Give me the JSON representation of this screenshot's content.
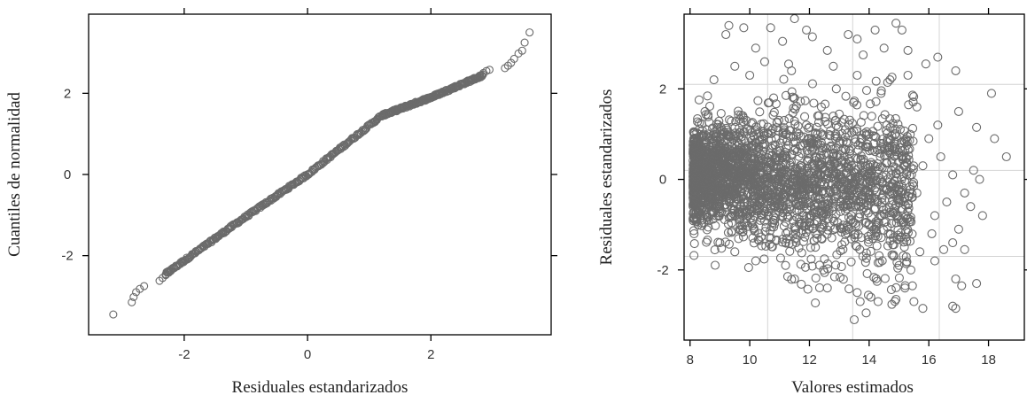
{
  "chart_data": [
    {
      "type": "scatter",
      "title": "",
      "xlabel": "Residuales estandarizados",
      "ylabel": "Cuantiles de normalidad",
      "xlim": [
        -3.55,
        3.95
      ],
      "ylim": [
        -3.95,
        3.95
      ],
      "x_ticks": [
        "-2",
        "0",
        "2"
      ],
      "y_ticks": [
        "-2",
        "0",
        "2"
      ],
      "x_tick_values": [
        -2,
        0,
        2
      ],
      "y_tick_values": [
        -2,
        0,
        2
      ],
      "grid": false,
      "marker_color": "#6b6b6b",
      "points": [
        [
          -3.15,
          -3.45
        ],
        [
          -2.85,
          -3.15
        ],
        [
          -2.82,
          -3.02
        ],
        [
          -2.78,
          -2.9
        ],
        [
          -2.72,
          -2.82
        ],
        [
          -2.65,
          -2.75
        ],
        [
          -2.4,
          -2.62
        ],
        [
          -2.35,
          -2.55
        ],
        [
          -2.3,
          -2.48
        ],
        [
          -2.25,
          -2.42
        ],
        [
          2.85,
          2.5
        ],
        [
          2.9,
          2.55
        ],
        [
          2.95,
          2.58
        ],
        [
          3.2,
          2.62
        ],
        [
          3.25,
          2.68
        ],
        [
          3.3,
          2.75
        ],
        [
          3.35,
          2.85
        ],
        [
          3.42,
          2.98
        ],
        [
          3.48,
          3.05
        ],
        [
          3.52,
          3.25
        ],
        [
          3.6,
          3.5
        ]
      ],
      "trend": [
        [
          -2.3,
          -2.45
        ],
        [
          -1.2,
          -1.25
        ],
        [
          0,
          0
        ],
        [
          1.2,
          1.45
        ],
        [
          2.0,
          1.9
        ],
        [
          2.85,
          2.45
        ]
      ]
    },
    {
      "type": "scatter",
      "title": "",
      "xlabel": "Valores estimados",
      "ylabel": "Residuales estandarizados",
      "xlim": [
        7.8,
        19.2
      ],
      "ylim": [
        -3.55,
        3.65
      ],
      "x_ticks": [
        "8",
        "10",
        "12",
        "14",
        "16",
        "18"
      ],
      "y_ticks": [
        "-2",
        "0",
        "2"
      ],
      "x_tick_values": [
        8,
        10,
        12,
        14,
        16,
        18
      ],
      "y_tick_values": [
        -2,
        0,
        2
      ],
      "grid": true,
      "grid_x": [
        10.6,
        13.45,
        16.35
      ],
      "grid_y": [
        -1.7,
        0.2,
        2.1
      ],
      "marker_color": "#6b6b6b",
      "points": [
        [
          9.3,
          3.4
        ],
        [
          9.2,
          3.2
        ],
        [
          9.8,
          3.35
        ],
        [
          10.7,
          3.35
        ],
        [
          11.5,
          3.55
        ],
        [
          11.9,
          3.3
        ],
        [
          12.1,
          3.15
        ],
        [
          13.3,
          3.2
        ],
        [
          14.2,
          3.3
        ],
        [
          14.9,
          3.45
        ],
        [
          15.1,
          3.3
        ],
        [
          13.6,
          3.1
        ],
        [
          14.5,
          2.9
        ],
        [
          15.3,
          2.85
        ],
        [
          11.1,
          3.05
        ],
        [
          16.3,
          2.7
        ],
        [
          16.9,
          2.4
        ],
        [
          15.9,
          2.55
        ],
        [
          13.8,
          2.75
        ],
        [
          12.6,
          2.85
        ],
        [
          10.2,
          2.9
        ],
        [
          9.5,
          2.5
        ],
        [
          8.8,
          2.2
        ],
        [
          10.5,
          2.6
        ],
        [
          17.0,
          1.5
        ],
        [
          17.6,
          1.15
        ],
        [
          18.1,
          1.9
        ],
        [
          18.2,
          0.9
        ],
        [
          18.6,
          0.5
        ],
        [
          17.5,
          0.2
        ],
        [
          17.7,
          0.0
        ],
        [
          17.2,
          -0.3
        ],
        [
          17.4,
          -0.6
        ],
        [
          17.0,
          -1.1
        ],
        [
          16.8,
          -1.4
        ],
        [
          17.2,
          -1.55
        ],
        [
          17.8,
          -0.8
        ],
        [
          16.9,
          -2.2
        ],
        [
          17.1,
          -2.35
        ],
        [
          17.6,
          -2.3
        ],
        [
          16.8,
          -2.8
        ],
        [
          16.9,
          -2.85
        ],
        [
          15.8,
          -2.85
        ],
        [
          15.5,
          -2.7
        ],
        [
          15.2,
          -2.4
        ],
        [
          14.3,
          -2.7
        ],
        [
          14.9,
          -2.65
        ],
        [
          13.6,
          -2.5
        ],
        [
          13.5,
          -3.1
        ],
        [
          13.9,
          -2.95
        ],
        [
          13.7,
          -2.7
        ],
        [
          12.6,
          -2.4
        ],
        [
          11.5,
          -2.2
        ],
        [
          11.2,
          -1.9
        ],
        [
          16.2,
          -1.8
        ],
        [
          15.7,
          -1.6
        ],
        [
          15.0,
          -1.9
        ],
        [
          15.4,
          -2.0
        ],
        [
          16.5,
          -1.55
        ],
        [
          16.1,
          -1.2
        ],
        [
          16.6,
          -0.5
        ],
        [
          16.2,
          -0.8
        ],
        [
          16.8,
          0.1
        ],
        [
          16.4,
          0.5
        ],
        [
          16.0,
          0.9
        ],
        [
          16.3,
          1.2
        ],
        [
          15.6,
          1.6
        ],
        [
          15.3,
          2.3
        ],
        [
          14.7,
          2.2
        ],
        [
          14.4,
          1.9
        ],
        [
          15.8,
          0.3
        ],
        [
          15.6,
          -0.3
        ],
        [
          9.0,
          -1.4
        ],
        [
          9.5,
          -1.6
        ],
        [
          10.2,
          -1.8
        ],
        [
          8.4,
          -0.9
        ],
        [
          8.6,
          1.0
        ],
        [
          8.5,
          1.5
        ],
        [
          12.4,
          1.6
        ],
        [
          12.9,
          2.0
        ],
        [
          11.9,
          1.2
        ],
        [
          13.2,
          1.1
        ],
        [
          12.2,
          -1.5
        ],
        [
          10.8,
          1.8
        ],
        [
          8.2,
          0.8
        ],
        [
          8.2,
          -0.6
        ],
        [
          12.8,
          2.5
        ],
        [
          11.4,
          2.4
        ],
        [
          10.0,
          2.3
        ],
        [
          13.6,
          2.3
        ]
      ]
    }
  ]
}
